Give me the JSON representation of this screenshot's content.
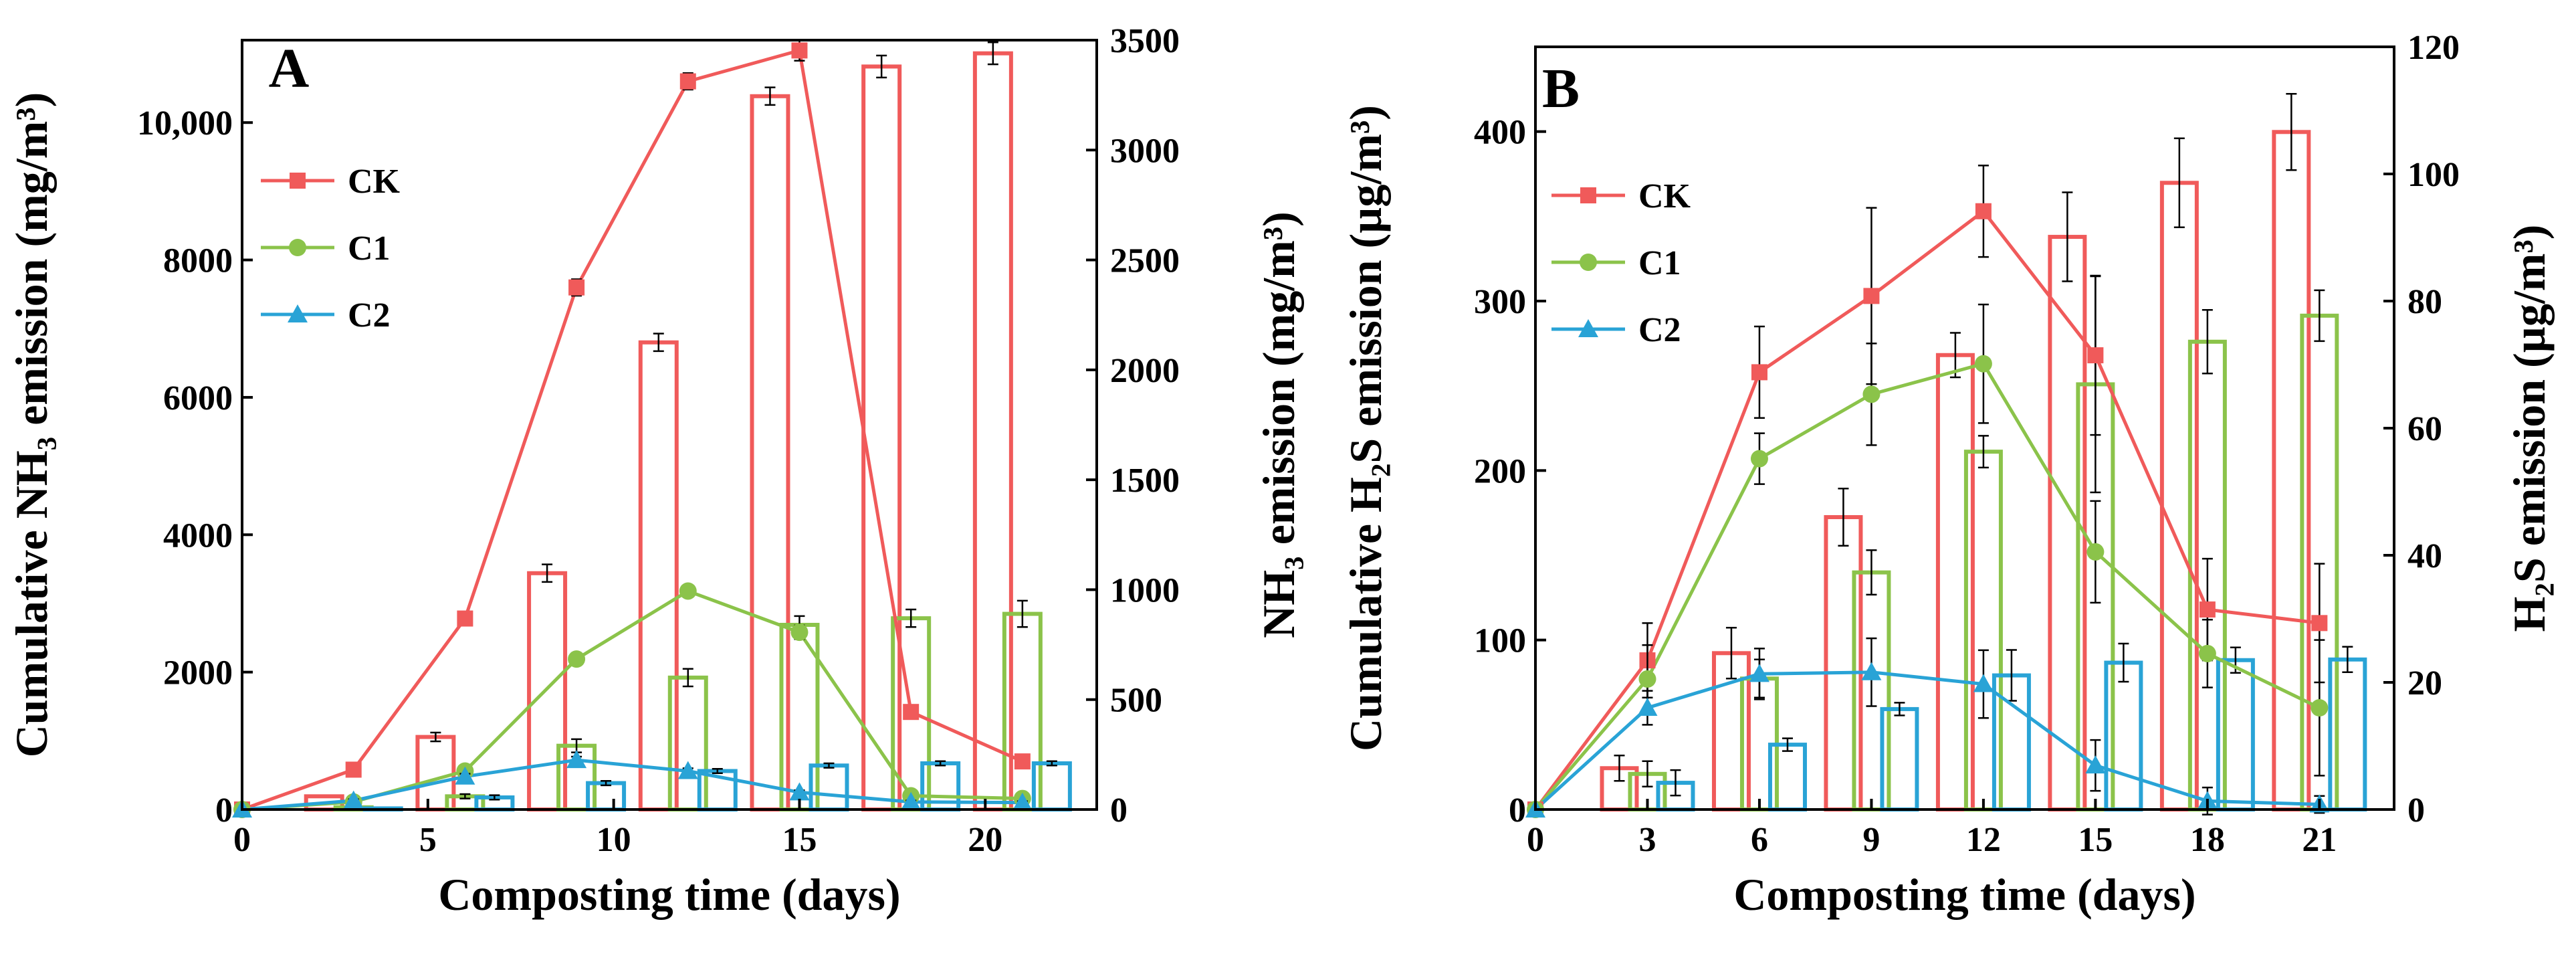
{
  "chart_data": [
    {
      "panel_label": "A",
      "type": "bar+line",
      "xlabel": "Composting time (days)",
      "ylabel_left": "Cumulative NH₃ emission (mg/m³)",
      "ylabel_right": "NH₃ emission  (mg/m³)",
      "xlim": [
        0,
        23
      ],
      "ylim_left": [
        0,
        11200
      ],
      "ylim_right": [
        0,
        3500
      ],
      "xticks": [
        0,
        5,
        10,
        15,
        20
      ],
      "xtick_labels": [
        "0",
        "5",
        "10",
        "15",
        "20"
      ],
      "yticks_left": [
        0,
        2000,
        4000,
        6000,
        8000,
        10000
      ],
      "ytick_labels_left": [
        "0",
        "2000",
        "4000",
        "6000",
        "8000",
        "10,000"
      ],
      "yticks_right": [
        0,
        500,
        1000,
        1500,
        2000,
        2500,
        3000,
        3500
      ],
      "ytick_labels_right": [
        "0",
        "500",
        "1000",
        "1500",
        "2000",
        "2500",
        "3000",
        "3500"
      ],
      "legend": [
        "CK",
        "C1",
        "C2"
      ],
      "legend_position": "top-left",
      "bar_x": [
        3,
        6,
        9,
        12,
        15,
        18,
        21
      ],
      "series": [
        {
          "name": "CK",
          "color": "#f05a5a",
          "marker": "square",
          "x": [
            0,
            3,
            6,
            9,
            12,
            15,
            18,
            21
          ],
          "cumulative": [
            0,
            580,
            2780,
            7600,
            10600,
            11050,
            1420,
            700
          ],
          "cumulative_err": [
            0,
            40,
            100,
            120,
            120,
            150,
            60,
            60
          ],
          "bars": [
            60,
            330,
            1075,
            2125,
            3245,
            3380,
            3440
          ],
          "bars_err": [
            0,
            20,
            40,
            40,
            40,
            50,
            50
          ]
        },
        {
          "name": "C1",
          "color": "#8bc34a",
          "marker": "circle",
          "x": [
            0,
            3,
            6,
            9,
            12,
            15,
            18,
            21
          ],
          "cumulative": [
            0,
            110,
            560,
            2190,
            3180,
            2580,
            200,
            160
          ],
          "cumulative_err": [
            0,
            20,
            50,
            60,
            80,
            100,
            30,
            30
          ],
          "bars": [
            10,
            60,
            290,
            600,
            840,
            870,
            890
          ],
          "bars_err": [
            0,
            10,
            30,
            40,
            40,
            40,
            60
          ]
        },
        {
          "name": "C2",
          "color": "#29a3d6",
          "marker": "triangle",
          "x": [
            0,
            3,
            6,
            9,
            12,
            15,
            18,
            21
          ],
          "cumulative": [
            0,
            130,
            480,
            720,
            560,
            250,
            110,
            100
          ],
          "cumulative_err": [
            0,
            20,
            40,
            50,
            40,
            30,
            20,
            20
          ],
          "bars": [
            5,
            55,
            120,
            175,
            200,
            210,
            210
          ],
          "bars_err": [
            0,
            10,
            10,
            10,
            10,
            10,
            10
          ]
        }
      ]
    },
    {
      "panel_label": "B",
      "type": "bar+line",
      "xlabel": "Composting time (days)",
      "ylabel_left": "Cumulative H₂S emission (µg/m³)",
      "ylabel_right": "H₂S emission  (µg/m³)",
      "xlim": [
        0,
        23
      ],
      "ylim_left": [
        0,
        450
      ],
      "ylim_right": [
        0,
        120
      ],
      "xticks": [
        0,
        3,
        6,
        9,
        12,
        15,
        18,
        21
      ],
      "xtick_labels": [
        "0",
        "3",
        "6",
        "9",
        "12",
        "15",
        "18",
        "21"
      ],
      "yticks_left": [
        0,
        100,
        200,
        300,
        400
      ],
      "ytick_labels_left": [
        "0",
        "100",
        "200",
        "300",
        "400"
      ],
      "yticks_right": [
        0,
        20,
        40,
        60,
        80,
        100,
        120
      ],
      "ytick_labels_right": [
        "0",
        "20",
        "40",
        "60",
        "80",
        "100",
        "120"
      ],
      "legend": [
        "CK",
        "C1",
        "C2"
      ],
      "legend_position": "top-left",
      "bar_x": [
        3,
        6,
        9,
        12,
        15,
        18,
        21
      ],
      "series": [
        {
          "name": "CK",
          "color": "#f05a5a",
          "marker": "square",
          "x": [
            0,
            3,
            6,
            9,
            12,
            15,
            18,
            21
          ],
          "cumulative": [
            0,
            88,
            258,
            303,
            353,
            268,
            118,
            110
          ],
          "cumulative_err": [
            0,
            22,
            27,
            52,
            27,
            47,
            30,
            35
          ],
          "bars": [
            6.5,
            24.6,
            46,
            71.5,
            90.1,
            98.6,
            106.6
          ],
          "bars_err": [
            2,
            4,
            4.5,
            3.5,
            7,
            7,
            6
          ]
        },
        {
          "name": "C1",
          "color": "#8bc34a",
          "marker": "circle",
          "x": [
            0,
            3,
            6,
            9,
            12,
            15,
            18,
            21
          ],
          "cumulative": [
            0,
            77,
            207,
            245,
            263,
            152,
            92,
            60
          ],
          "cumulative_err": [
            0,
            20,
            15,
            30,
            35,
            30,
            20,
            40
          ],
          "bars": [
            5.6,
            20.6,
            37.3,
            56.3,
            66.9,
            73.6,
            77.7
          ],
          "bars_err": [
            2,
            3,
            3.5,
            2.5,
            17,
            5,
            4
          ]
        },
        {
          "name": "C2",
          "color": "#29a3d6",
          "marker": "triangle",
          "x": [
            0,
            3,
            6,
            9,
            12,
            15,
            18,
            21
          ],
          "cumulative": [
            0,
            60,
            80,
            81,
            74,
            26,
            5,
            3
          ],
          "cumulative_err": [
            0,
            10,
            15,
            20,
            20,
            15,
            8,
            5
          ],
          "bars": [
            4.2,
            10.2,
            15.8,
            21.1,
            23.1,
            23.5,
            23.6
          ],
          "bars_err": [
            2,
            1,
            1,
            4,
            3,
            2,
            2
          ]
        }
      ]
    }
  ]
}
